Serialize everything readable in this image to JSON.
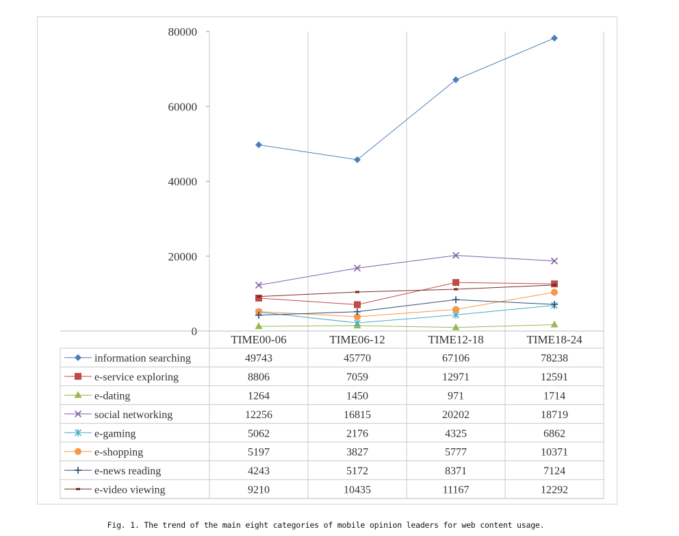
{
  "caption": "Fig. 1. The trend of the main eight categories of mobile opinion leaders for web content usage.",
  "chart_data": {
    "type": "line",
    "categories": [
      "TIME00-06",
      "TIME06-12",
      "TIME12-18",
      "TIME18-24"
    ],
    "ylim": [
      0,
      80000
    ],
    "yticks": [
      0,
      20000,
      40000,
      60000,
      80000
    ],
    "grid": "vertical",
    "legend": "data-table",
    "series": [
      {
        "name": "information searching",
        "values": [
          49743,
          45770,
          67106,
          78238
        ],
        "color": "#4a7ebb",
        "marker": "diamond"
      },
      {
        "name": "e-service exploring",
        "values": [
          8806,
          7059,
          12971,
          12591
        ],
        "color": "#be4b48",
        "marker": "square"
      },
      {
        "name": "e-dating",
        "values": [
          1264,
          1450,
          971,
          1714
        ],
        "color": "#98b954",
        "marker": "triangle"
      },
      {
        "name": "social networking",
        "values": [
          12256,
          16815,
          20202,
          18719
        ],
        "color": "#7d60a0",
        "marker": "x"
      },
      {
        "name": "e-gaming",
        "values": [
          5062,
          2176,
          4325,
          6862
        ],
        "color": "#46aac5",
        "marker": "asterisk"
      },
      {
        "name": "e-shopping",
        "values": [
          5197,
          3827,
          5777,
          10371
        ],
        "color": "#f79646",
        "marker": "circle"
      },
      {
        "name": "e-news reading",
        "values": [
          4243,
          5172,
          8371,
          7124
        ],
        "color": "#2c4d75",
        "marker": "plus"
      },
      {
        "name": "e-video viewing",
        "values": [
          9210,
          10435,
          11167,
          12292
        ],
        "color": "#772c2a",
        "marker": "dash"
      }
    ]
  }
}
